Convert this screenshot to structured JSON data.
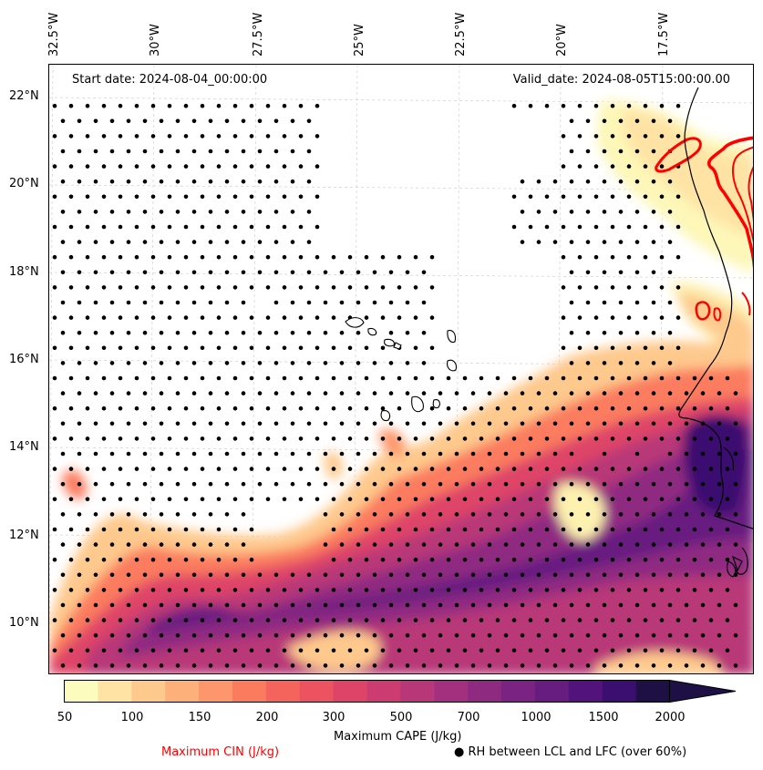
{
  "map": {
    "start_date": "Start date: 2024-08-04_00:00:00",
    "valid_date": "Valid_date: 2024-08-05T15:00:00.00",
    "lon_labels": [
      "32.5°W",
      "30°W",
      "27.5°W",
      "25°W",
      "22.5°W",
      "20°W",
      "17.5°W"
    ],
    "lat_labels": [
      "22°N",
      "20°N",
      "18°N",
      "16°N",
      "14°N",
      "12°N",
      "10°N"
    ],
    "region": "Eastern tropical Atlantic, Cape Verde and West African coast"
  },
  "colorbar": {
    "ticks": [
      "50",
      "100",
      "150",
      "200",
      "300",
      "500",
      "700",
      "1000",
      "1500",
      "2000"
    ],
    "label": "Maximum CAPE (J/kg)",
    "colors": [
      "#fdfcbf",
      "#fee3a4",
      "#fec98d",
      "#feb07a",
      "#fd966c",
      "#fb7b5f",
      "#f5645c",
      "#ec525f",
      "#de4468",
      "#cc3c70",
      "#b83778",
      "#a3307e",
      "#8f2a81",
      "#7b2382",
      "#671c80",
      "#52137c",
      "#3b0f70",
      "#1e1044"
    ],
    "extend": "max"
  },
  "legend": {
    "cin_label": "Maximum CIN (J/kg)",
    "cin_color": "#ff0000",
    "rh_label": "● RH between LCL and LFC (over 60%)"
  }
}
